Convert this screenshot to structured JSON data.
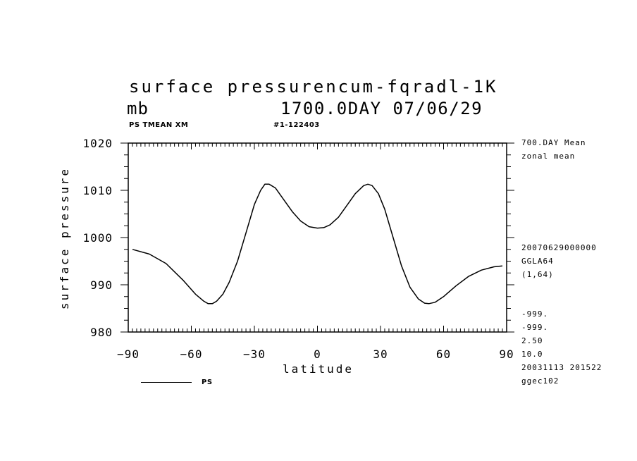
{
  "header": {
    "title_line1": "surface pressurencum-fqradl-1K",
    "unit": "mb",
    "run_info": "1700.0DAY 07/06/29",
    "var_label": "PS TMEAN XM",
    "run_id": "#1-122403"
  },
  "side_notes": {
    "mean_label": "700.DAY Mean",
    "zonal_label": "zonal mean",
    "date_code": "20070629000000",
    "grid": "GGLA64",
    "grid_index": "(1,64)",
    "missing1": "-999.",
    "missing2": "-999.",
    "interval": "2.50",
    "interval2": "10.0",
    "created": "20031113 201522",
    "machine": "ggec102"
  },
  "colors": {
    "line": "#000000",
    "background": "#ffffff"
  },
  "chart_data": {
    "type": "line",
    "title": "surface pressurencum-fqradl-1K",
    "xlabel": "latitude",
    "ylabel": "surface pressure",
    "xlim": [
      -90,
      90
    ],
    "ylim": [
      980,
      1020
    ],
    "xticks": [
      -90,
      -60,
      -30,
      0,
      30,
      60,
      90
    ],
    "yticks": [
      980,
      990,
      1000,
      1010,
      1020
    ],
    "grid": false,
    "legend": "bottom-left",
    "series": [
      {
        "name": "PS",
        "x": [
          -88,
          -80,
          -72,
          -64,
          -58,
          -54,
          -52,
          -50,
          -48,
          -45,
          -42,
          -38,
          -34,
          -30,
          -27,
          -25,
          -23,
          -20,
          -16,
          -12,
          -8,
          -4,
          0,
          3,
          6,
          10,
          14,
          18,
          22,
          24,
          26,
          29,
          32,
          36,
          40,
          44,
          48,
          51,
          53,
          56,
          60,
          66,
          72,
          78,
          84,
          88
        ],
        "y": [
          997.5,
          996.5,
          994.5,
          991,
          988,
          986.5,
          986,
          986,
          986.5,
          988,
          990.5,
          995,
          1001,
          1007,
          1010,
          1011.3,
          1011.3,
          1010.5,
          1008,
          1005.5,
          1003.5,
          1002.3,
          1002,
          1002.1,
          1002.7,
          1004.3,
          1006.8,
          1009.3,
          1011,
          1011.3,
          1011,
          1009.3,
          1006,
          1000,
          994,
          989.5,
          987,
          986.1,
          986,
          986.3,
          987.5,
          989.8,
          991.8,
          993.1,
          993.8,
          994
        ]
      }
    ]
  }
}
